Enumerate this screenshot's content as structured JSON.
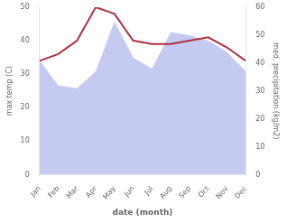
{
  "chart_data": {
    "type": "line",
    "categories": [
      "Jan",
      "Feb",
      "Mar",
      "Apr",
      "May",
      "Jun",
      "Jul",
      "Aug",
      "Sep",
      "Oct",
      "Nov",
      "Dec"
    ],
    "series": [
      {
        "type": "area",
        "axis": "y2",
        "color": "#c5caf0",
        "values": [
          41,
          32,
          31,
          37,
          55,
          42,
          38,
          51,
          50,
          48,
          44,
          37
        ]
      },
      {
        "type": "line",
        "color": "#b03040",
        "values": [
          34,
          36,
          40,
          50,
          48,
          40,
          39,
          39,
          40,
          41,
          38,
          34
        ]
      }
    ],
    "xlabel": "date (month)",
    "ylabel": "max temp (C)",
    "y2label": "med. precipitation (kg/m2)",
    "ylim": [
      0,
      50
    ],
    "yticks": [
      0,
      10,
      20,
      30,
      40,
      50
    ],
    "y2lim": [
      0,
      60
    ],
    "y2ticks": [
      0,
      10,
      20,
      30,
      40,
      50,
      60
    ],
    "grid": false
  }
}
